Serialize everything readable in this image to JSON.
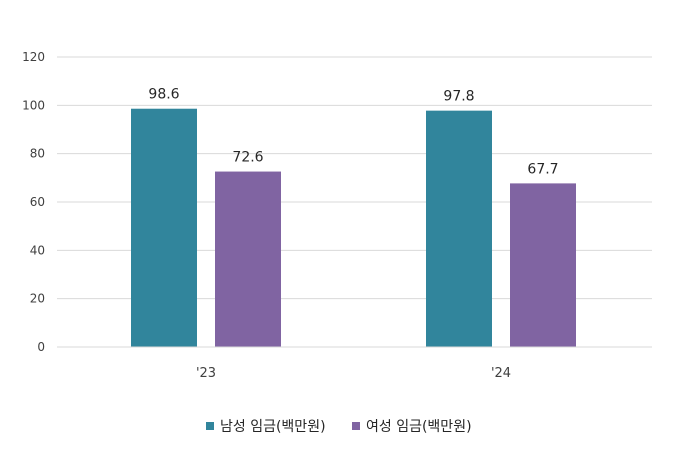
{
  "chart_data": {
    "type": "bar",
    "title": "",
    "xlabel": "",
    "ylabel": "",
    "categories": [
      "'23",
      "'24"
    ],
    "series": [
      {
        "name": "남성 임금(백만원)",
        "values": [
          98.6,
          97.8
        ],
        "color": "#31859C"
      },
      {
        "name": "여성 임금(백만원)",
        "values": [
          72.6,
          67.7
        ],
        "color": "#8064A2"
      }
    ],
    "ylim": [
      0,
      120
    ],
    "yticks": [
      0,
      20,
      40,
      60,
      80,
      100,
      120
    ],
    "grid": true,
    "gridline_color": "#D9D9D9",
    "legend_position": "bottom",
    "data_labels": true
  }
}
